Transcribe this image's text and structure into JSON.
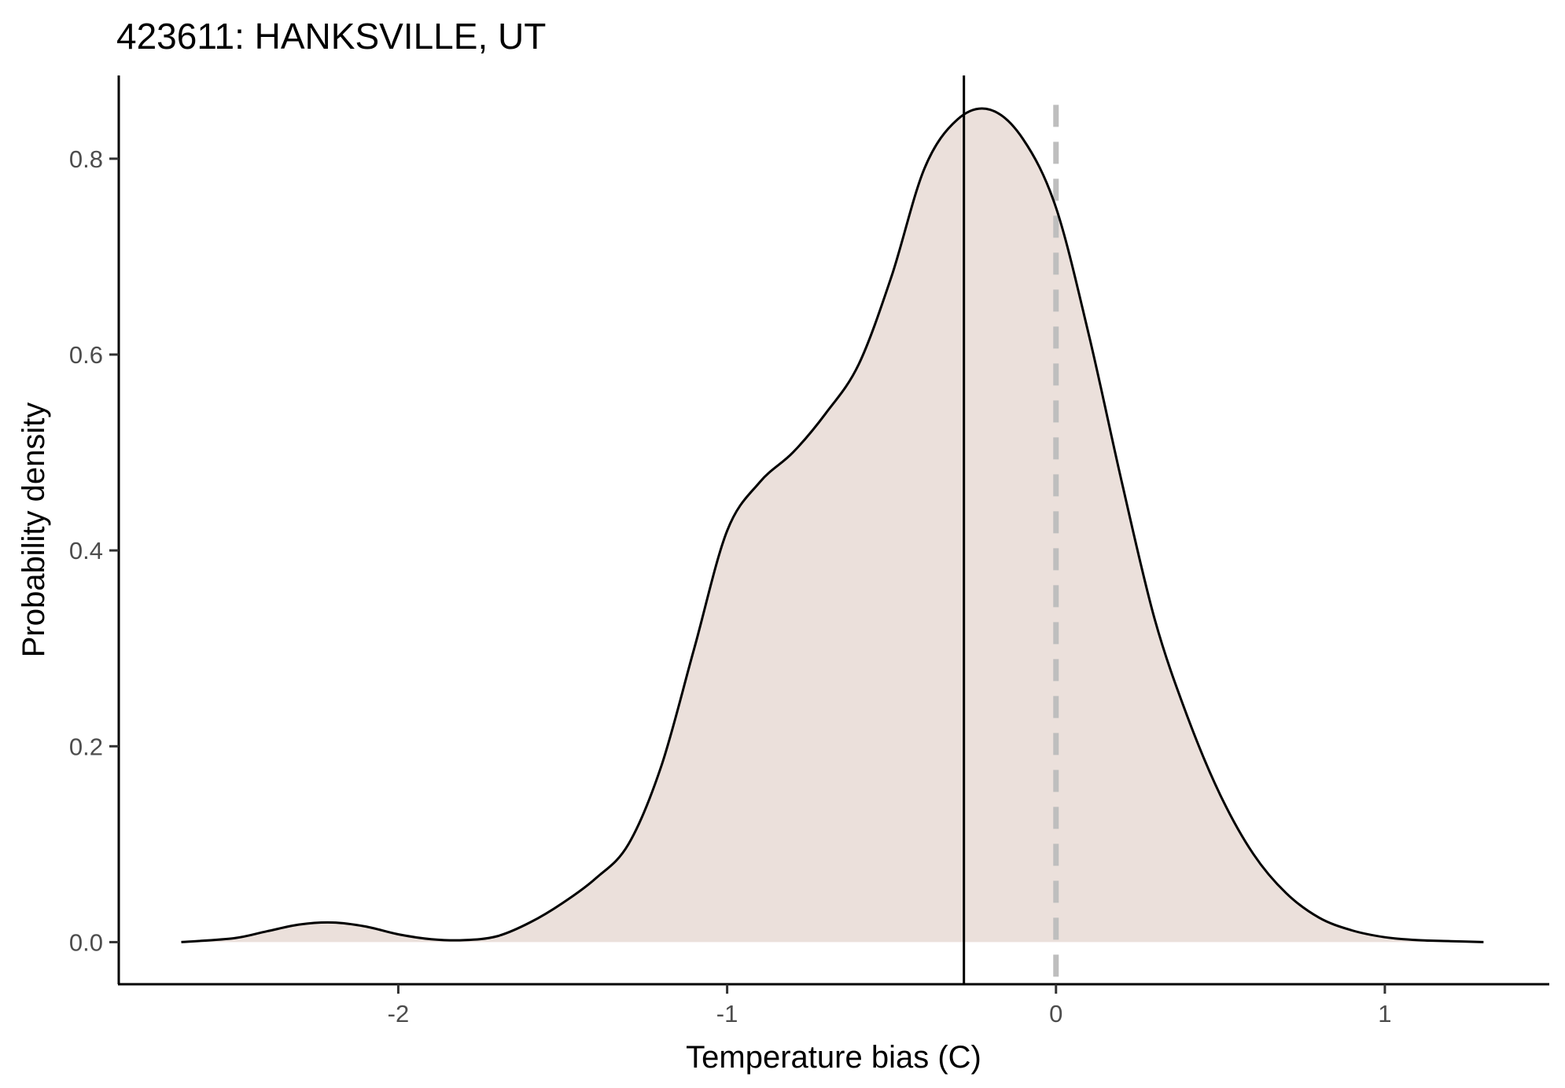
{
  "chart_data": {
    "type": "area",
    "title": "423611: HANKSVILLE, UT",
    "xlabel": "Temperature bias (C)",
    "ylabel": "Probability density",
    "xlim": [
      -2.85,
      1.5
    ],
    "ylim": [
      -0.043,
      0.885
    ],
    "x_ticks": [
      -2,
      -1,
      0,
      1
    ],
    "x_tick_labels": [
      "-2",
      "-1",
      "0",
      "1"
    ],
    "y_ticks": [
      0.0,
      0.2,
      0.4,
      0.6,
      0.8
    ],
    "y_tick_labels": [
      "0.0",
      "0.2",
      "0.4",
      "0.6",
      "0.8"
    ],
    "grid": false,
    "legend": "none",
    "fill_color": "#ebe0db",
    "line_color": "#000000",
    "mean_line": {
      "x": -0.28,
      "color": "#000000",
      "style": "solid"
    },
    "reference_line": {
      "x": 0,
      "color": "#bebebe",
      "style": "dashed"
    },
    "x": [
      -2.66,
      -2.5,
      -2.4,
      -2.3,
      -2.2,
      -2.1,
      -2.0,
      -1.9,
      -1.8,
      -1.7,
      -1.6,
      -1.5,
      -1.4,
      -1.3,
      -1.2,
      -1.1,
      -1.0,
      -0.9,
      -0.8,
      -0.7,
      -0.6,
      -0.5,
      -0.4,
      -0.3,
      -0.2,
      -0.1,
      0.0,
      0.1,
      0.2,
      0.3,
      0.4,
      0.5,
      0.6,
      0.7,
      0.8,
      0.9,
      1.0,
      1.1,
      1.2,
      1.3
    ],
    "y": [
      0.0,
      0.004,
      0.011,
      0.018,
      0.02,
      0.016,
      0.008,
      0.003,
      0.002,
      0.006,
      0.02,
      0.04,
      0.065,
      0.1,
      0.18,
      0.3,
      0.42,
      0.47,
      0.5,
      0.54,
      0.59,
      0.68,
      0.79,
      0.84,
      0.85,
      0.82,
      0.75,
      0.62,
      0.47,
      0.33,
      0.23,
      0.15,
      0.09,
      0.05,
      0.025,
      0.012,
      0.005,
      0.002,
      0.001,
      0.0
    ]
  }
}
